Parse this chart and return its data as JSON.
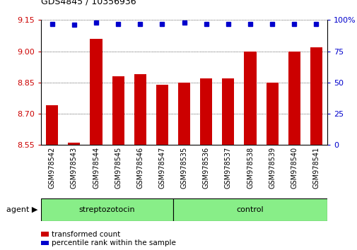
{
  "title": "GDS4845 / 10356936",
  "samples": [
    "GSM978542",
    "GSM978543",
    "GSM978544",
    "GSM978545",
    "GSM978546",
    "GSM978547",
    "GSM978535",
    "GSM978536",
    "GSM978537",
    "GSM978538",
    "GSM978539",
    "GSM978540",
    "GSM978541"
  ],
  "bar_values": [
    8.74,
    8.56,
    9.06,
    8.88,
    8.89,
    8.84,
    8.85,
    8.87,
    8.87,
    9.0,
    8.85,
    9.0,
    9.02
  ],
  "percentile_values": [
    97,
    96,
    98,
    97,
    97,
    97,
    98,
    97,
    97,
    97,
    97,
    97,
    97
  ],
  "bar_color": "#cc0000",
  "dot_color": "#0000cc",
  "ylim_left": [
    8.55,
    9.15
  ],
  "ylim_right": [
    0,
    100
  ],
  "yticks_left": [
    8.55,
    8.7,
    8.85,
    9.0,
    9.15
  ],
  "yticks_right": [
    0,
    25,
    50,
    75,
    100
  ],
  "group1_label": "streptozotocin",
  "group2_label": "control",
  "group1_count": 6,
  "group2_count": 7,
  "agent_label": "agent",
  "legend_bar": "transformed count",
  "legend_dot": "percentile rank within the sample",
  "bar_width": 0.55,
  "background_color": "#ffffff",
  "plot_bg": "#ffffff",
  "group_bg": "#88ee88",
  "tick_label_fontsize": 7,
  "left_label_color": "#cc0000",
  "right_label_color": "#0000cc"
}
